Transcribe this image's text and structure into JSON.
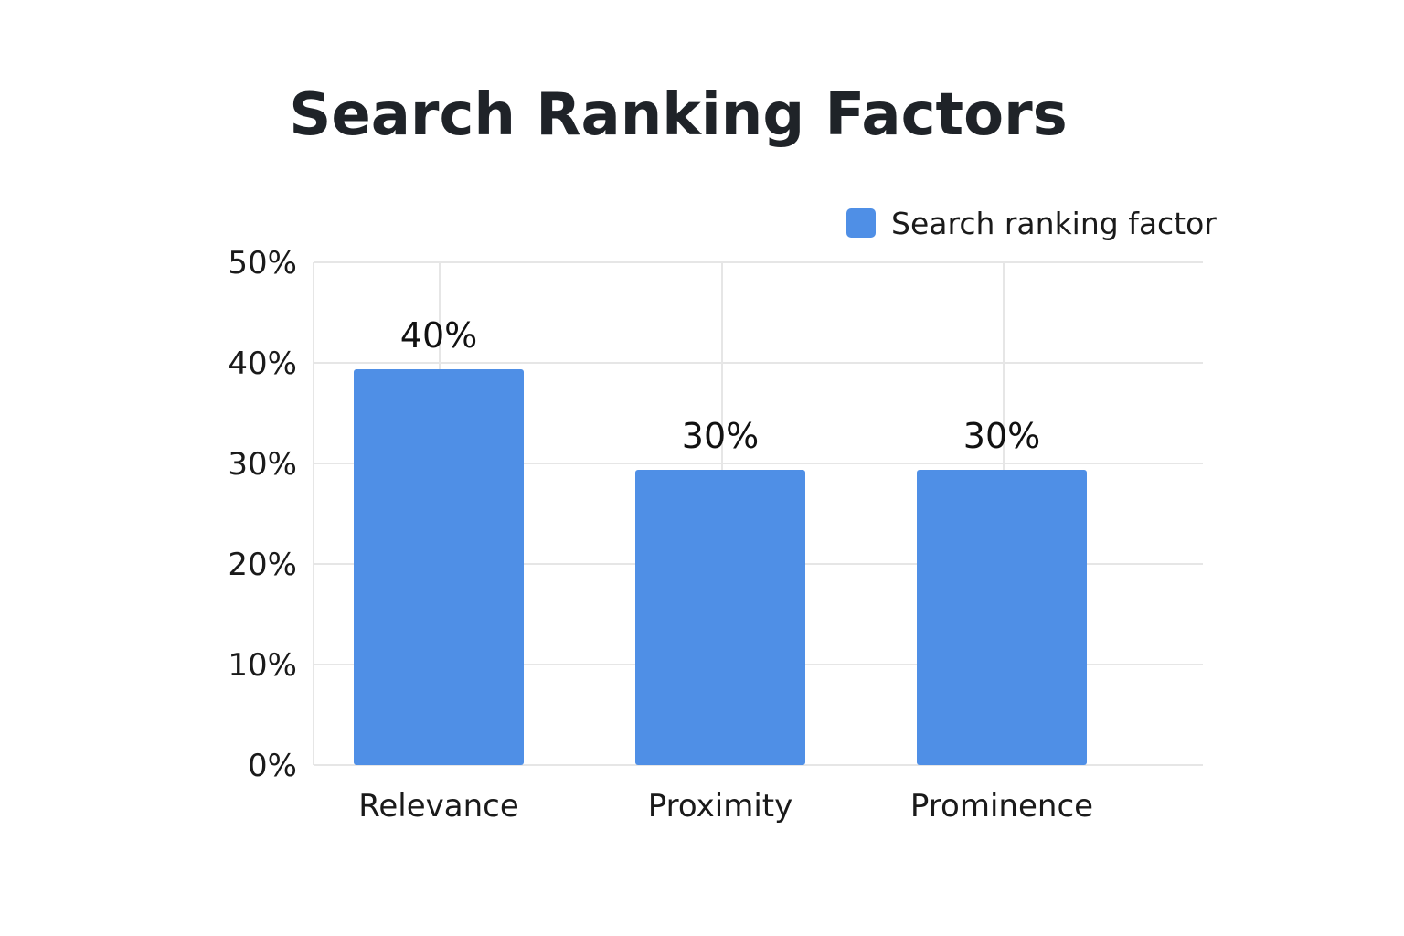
{
  "chart_data": {
    "type": "bar",
    "title": "Search Ranking Factors",
    "categories": [
      "Relevance",
      "Proximity",
      "Prominence"
    ],
    "series": [
      {
        "name": "Search ranking factor",
        "values": [
          40,
          30,
          30
        ],
        "color": "#4f8fe6"
      }
    ],
    "data_labels": [
      "40%",
      "30%",
      "30%"
    ],
    "y_ticks": [
      "0%",
      "10%",
      "20%",
      "30%",
      "40%",
      "50%"
    ],
    "ylim": [
      0,
      50
    ],
    "y_tick_values": [
      0,
      10,
      20,
      30,
      40,
      50
    ],
    "xlabel": "",
    "ylabel": "",
    "grid": true,
    "legend_position": "top-right"
  }
}
